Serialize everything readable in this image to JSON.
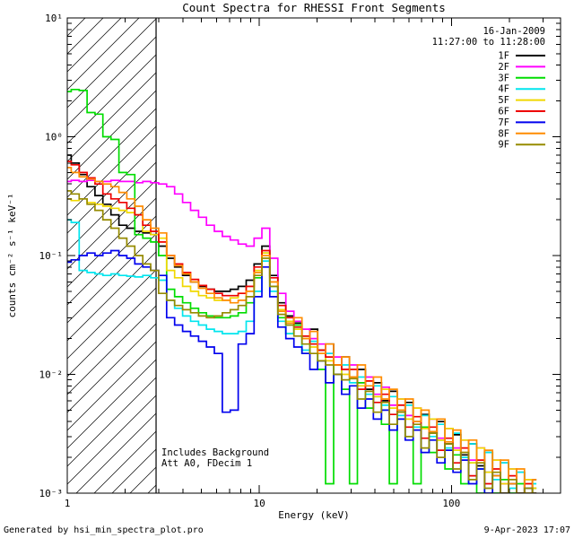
{
  "title": "Count Spectra for RHESSI Front Segments",
  "annotations": {
    "date": "16-Jan-2009",
    "time_range": "11:27:00 to 11:28:00",
    "note_line1": "Includes Background",
    "note_line2": "Att A0, FDecim 1"
  },
  "footer": {
    "left": "Generated by hsi_min_spectra_plot.pro",
    "right": "9-Apr-2023 17:07"
  },
  "chart_data": {
    "type": "line",
    "subtype": "step-histogram-spectra",
    "title": "Count Spectra for RHESSI Front Segments",
    "xlabel": "Energy (keV)",
    "ylabel": "counts cm⁻² s⁻¹ keV⁻¹",
    "x_scale": "log",
    "y_scale": "log",
    "xlim": [
      1,
      370
    ],
    "ylim": [
      0.001,
      10
    ],
    "x_ticks": [
      1,
      10,
      100
    ],
    "x_tick_labels": [
      "1",
      "10",
      "100"
    ],
    "y_ticks": [
      0.001,
      0.01,
      0.1,
      1,
      10
    ],
    "y_tick_labels": [
      "10⁻³",
      "10⁻²",
      "10⁻¹",
      "10⁰",
      "10¹"
    ],
    "grid": false,
    "legend_position": "top-right-inside",
    "hatch_region": {
      "from": 1.0,
      "to": 2.9,
      "style": "diagonal-lines"
    },
    "energies": [
      1.0,
      1.1,
      1.21,
      1.33,
      1.46,
      1.61,
      1.77,
      1.95,
      2.14,
      2.36,
      2.59,
      2.85,
      3.14,
      3.45,
      3.8,
      4.18,
      4.6,
      5.06,
      5.56,
      6.12,
      6.73,
      7.4,
      8.14,
      8.96,
      9.85,
      10.8,
      11.9,
      13.1,
      14.4,
      15.9,
      17.5,
      19.2,
      21.1,
      23.2,
      25.6,
      28.1,
      30.9,
      34.0,
      37.4,
      41.2,
      45.3,
      49.8,
      54.8,
      60.3,
      66.3,
      72.9,
      80.2,
      88.2,
      97.1,
      107,
      117,
      129,
      142,
      156,
      172,
      189,
      208,
      229,
      252,
      277
    ],
    "series": [
      {
        "name": "1F",
        "color": "#000000",
        "values": [
          0.7,
          0.6,
          0.48,
          0.38,
          0.32,
          0.27,
          0.22,
          0.18,
          0.17,
          0.16,
          0.155,
          0.15,
          0.12,
          0.095,
          0.08,
          0.068,
          0.06,
          0.055,
          0.052,
          0.05,
          0.05,
          0.052,
          0.055,
          0.062,
          0.085,
          0.12,
          0.068,
          0.04,
          0.031,
          0.027,
          0.021,
          0.024,
          0.016,
          0.018,
          0.012,
          0.014,
          0.0095,
          0.011,
          0.0075,
          0.0085,
          0.006,
          0.0072,
          0.005,
          0.0058,
          0.004,
          0.0046,
          0.0032,
          0.004,
          0.0026,
          0.0031,
          0.0021,
          0.0026,
          0.0017,
          0.0022,
          0.0014,
          0.0018,
          0.0012,
          0.0015,
          0.001,
          0.0013
        ]
      },
      {
        "name": "2F",
        "color": "#ff00ff",
        "values": [
          0.42,
          0.43,
          0.42,
          0.43,
          0.42,
          0.42,
          0.43,
          0.42,
          0.42,
          0.41,
          0.42,
          0.41,
          0.4,
          0.38,
          0.33,
          0.28,
          0.24,
          0.21,
          0.18,
          0.16,
          0.145,
          0.135,
          0.125,
          0.12,
          0.14,
          0.17,
          0.095,
          0.048,
          0.034,
          0.028,
          0.024,
          0.02,
          0.018,
          0.015,
          0.014,
          0.011,
          0.012,
          0.0085,
          0.0095,
          0.0068,
          0.0078,
          0.0055,
          0.0062,
          0.0045,
          0.0052,
          0.0036,
          0.0042,
          0.0029,
          0.0035,
          0.0024,
          0.0028,
          0.0019,
          0.0024,
          0.0015,
          0.0019,
          0.0012,
          0.0016,
          0.001,
          0.0013,
          0.0011
        ]
      },
      {
        "name": "3F",
        "color": "#00dd00",
        "values": [
          2.4,
          2.5,
          2.45,
          1.6,
          1.55,
          1.0,
          0.95,
          0.5,
          0.48,
          0.15,
          0.14,
          0.13,
          0.1,
          0.052,
          0.045,
          0.04,
          0.036,
          0.033,
          0.031,
          0.03,
          0.03,
          0.031,
          0.033,
          0.04,
          0.065,
          0.105,
          0.055,
          0.03,
          0.022,
          0.026,
          0.015,
          0.018,
          0.011,
          0.0012,
          0.012,
          0.0075,
          0.0012,
          0.0085,
          0.0052,
          0.0065,
          0.0038,
          0.0012,
          0.0048,
          0.003,
          0.0012,
          0.0036,
          0.0022,
          0.0028,
          0.0016,
          0.0021,
          0.0012,
          0.0018,
          0.001,
          0.0015,
          0.001,
          0.0013,
          0.001,
          0.0012,
          0.001,
          0.0011
        ]
      },
      {
        "name": "4F",
        "color": "#00e5ee",
        "values": [
          0.2,
          0.19,
          0.075,
          0.072,
          0.07,
          0.068,
          0.07,
          0.068,
          0.067,
          0.066,
          0.068,
          0.065,
          0.062,
          0.042,
          0.036,
          0.031,
          0.028,
          0.026,
          0.024,
          0.023,
          0.022,
          0.022,
          0.023,
          0.028,
          0.05,
          0.09,
          0.05,
          0.028,
          0.022,
          0.024,
          0.016,
          0.019,
          0.013,
          0.015,
          0.01,
          0.012,
          0.0085,
          0.0095,
          0.0068,
          0.008,
          0.0055,
          0.0065,
          0.0045,
          0.0055,
          0.0036,
          0.0045,
          0.003,
          0.0038,
          0.0024,
          0.0032,
          0.002,
          0.0026,
          0.0016,
          0.0022,
          0.0013,
          0.0018,
          0.0011,
          0.0015,
          0.001,
          0.0012
        ]
      },
      {
        "name": "5F",
        "color": "#f0d800",
        "values": [
          0.3,
          0.29,
          0.3,
          0.28,
          0.27,
          0.26,
          0.25,
          0.24,
          0.23,
          0.22,
          0.16,
          0.15,
          0.14,
          0.075,
          0.065,
          0.055,
          0.05,
          0.046,
          0.044,
          0.042,
          0.042,
          0.044,
          0.048,
          0.055,
          0.075,
          0.105,
          0.06,
          0.035,
          0.028,
          0.024,
          0.02,
          0.017,
          0.015,
          0.013,
          0.012,
          0.01,
          0.0095,
          0.008,
          0.0088,
          0.0065,
          0.0075,
          0.0052,
          0.0062,
          0.0042,
          0.0052,
          0.0035,
          0.0042,
          0.0028,
          0.0035,
          0.0023,
          0.0028,
          0.0018,
          0.0024,
          0.0015,
          0.0019,
          0.0012,
          0.0016,
          0.001,
          0.0013,
          0.0011
        ]
      },
      {
        "name": "6F",
        "color": "#ee0000",
        "values": [
          0.62,
          0.58,
          0.5,
          0.45,
          0.4,
          0.33,
          0.3,
          0.28,
          0.25,
          0.22,
          0.18,
          0.16,
          0.13,
          0.1,
          0.085,
          0.072,
          0.063,
          0.056,
          0.052,
          0.048,
          0.046,
          0.046,
          0.048,
          0.055,
          0.08,
          0.11,
          0.065,
          0.038,
          0.03,
          0.025,
          0.021,
          0.018,
          0.016,
          0.014,
          0.012,
          0.011,
          0.011,
          0.0075,
          0.0088,
          0.0058,
          0.0068,
          0.0046,
          0.0055,
          0.0036,
          0.0044,
          0.0029,
          0.0036,
          0.0023,
          0.0029,
          0.0018,
          0.0024,
          0.0014,
          0.0019,
          0.0012,
          0.0016,
          0.001,
          0.0014,
          0.001,
          0.0012,
          0.001
        ]
      },
      {
        "name": "7F",
        "color": "#0000ee",
        "values": [
          0.088,
          0.092,
          0.1,
          0.105,
          0.1,
          0.105,
          0.11,
          0.1,
          0.095,
          0.085,
          0.08,
          0.075,
          0.068,
          0.03,
          0.026,
          0.023,
          0.021,
          0.019,
          0.017,
          0.015,
          0.0048,
          0.005,
          0.018,
          0.022,
          0.045,
          0.08,
          0.045,
          0.025,
          0.02,
          0.017,
          0.015,
          0.011,
          0.013,
          0.0085,
          0.01,
          0.0068,
          0.008,
          0.0052,
          0.0062,
          0.0042,
          0.005,
          0.0034,
          0.0042,
          0.0028,
          0.0034,
          0.0022,
          0.0028,
          0.0018,
          0.0023,
          0.0015,
          0.0019,
          0.0012,
          0.0016,
          0.001,
          0.0014,
          0.001,
          0.0012,
          0.001,
          0.0011,
          0.001
        ]
      },
      {
        "name": "8F",
        "color": "#ff8c00",
        "values": [
          0.55,
          0.5,
          0.46,
          0.44,
          0.42,
          0.4,
          0.38,
          0.34,
          0.3,
          0.26,
          0.2,
          0.17,
          0.155,
          0.1,
          0.082,
          0.07,
          0.06,
          0.053,
          0.048,
          0.044,
          0.042,
          0.04,
          0.042,
          0.05,
          0.072,
          0.1,
          0.06,
          0.034,
          0.027,
          0.03,
          0.02,
          0.023,
          0.015,
          0.018,
          0.012,
          0.014,
          0.0095,
          0.012,
          0.008,
          0.0095,
          0.0062,
          0.0075,
          0.005,
          0.0062,
          0.004,
          0.005,
          0.0033,
          0.0042,
          0.0027,
          0.0034,
          0.0022,
          0.0028,
          0.0018,
          0.0023,
          0.0014,
          0.0019,
          0.0012,
          0.0016,
          0.001,
          0.0013
        ]
      },
      {
        "name": "9F",
        "color": "#968b00",
        "values": [
          0.35,
          0.33,
          0.3,
          0.27,
          0.24,
          0.2,
          0.17,
          0.14,
          0.12,
          0.1,
          0.085,
          0.075,
          0.048,
          0.042,
          0.038,
          0.035,
          0.033,
          0.031,
          0.03,
          0.031,
          0.033,
          0.035,
          0.038,
          0.045,
          0.068,
          0.095,
          0.055,
          0.032,
          0.026,
          0.021,
          0.018,
          0.015,
          0.013,
          0.012,
          0.01,
          0.009,
          0.0092,
          0.0062,
          0.0072,
          0.0048,
          0.0058,
          0.0038,
          0.0048,
          0.003,
          0.0038,
          0.0024,
          0.0032,
          0.002,
          0.0026,
          0.0016,
          0.0022,
          0.0013,
          0.0018,
          0.0011,
          0.0015,
          0.001,
          0.0013,
          0.001,
          0.0011,
          0.001
        ]
      }
    ]
  },
  "legend": {
    "entries": [
      {
        "label": "1F",
        "color": "#000000"
      },
      {
        "label": "2F",
        "color": "#ff00ff"
      },
      {
        "label": "3F",
        "color": "#00dd00"
      },
      {
        "label": "4F",
        "color": "#00e5ee"
      },
      {
        "label": "5F",
        "color": "#f0d800"
      },
      {
        "label": "6F",
        "color": "#ee0000"
      },
      {
        "label": "7F",
        "color": "#0000ee"
      },
      {
        "label": "8F",
        "color": "#ff8c00"
      },
      {
        "label": "9F",
        "color": "#968b00"
      }
    ]
  }
}
